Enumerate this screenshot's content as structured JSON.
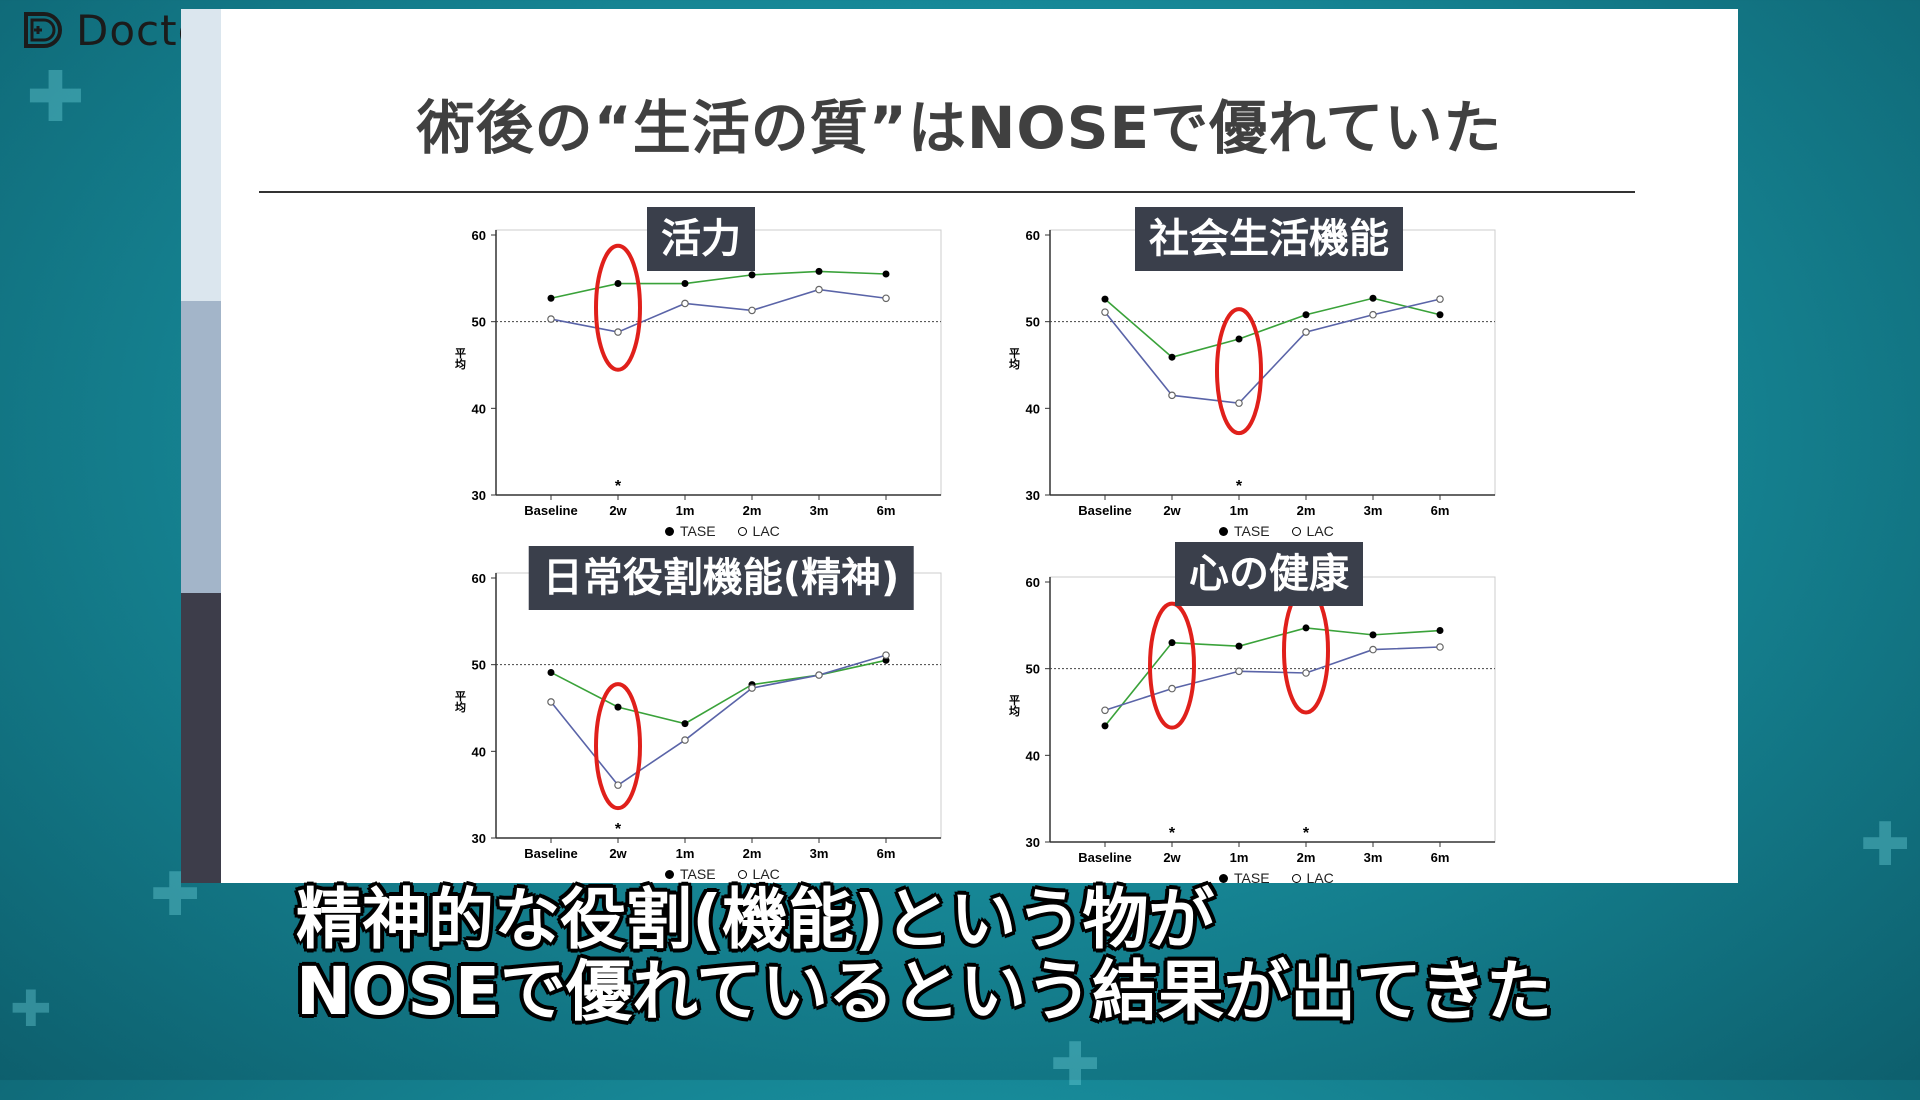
{
  "brand": {
    "name": "Doctorbook"
  },
  "slide": {
    "title": "術後の“生活の質”はNOSEで優れていた"
  },
  "legend": {
    "tase": "TASE",
    "lac": "LAC"
  },
  "colors": {
    "tase": "#3aa23a",
    "lac": "#5a64a8",
    "highlight": "#e0201b",
    "label_bg": "#3a3f4b"
  },
  "chart_data": [
    {
      "type": "line",
      "title": "活力",
      "ylabel": "平均",
      "categories": [
        "Baseline",
        "2w",
        "1m",
        "2m",
        "3m",
        "6m"
      ],
      "ylim": [
        30,
        60
      ],
      "yticks": [
        "30",
        "40",
        "50",
        "60"
      ],
      "reference_line": 50,
      "significant": [
        "2w"
      ],
      "highlighted": [
        "2w"
      ],
      "series": [
        {
          "name": "TASE",
          "values": [
            52.7,
            54.4,
            54.4,
            55.4,
            55.8,
            55.5
          ]
        },
        {
          "name": "LAC",
          "values": [
            50.3,
            48.8,
            52.1,
            51.3,
            53.7,
            52.7
          ]
        }
      ]
    },
    {
      "type": "line",
      "title": "社会生活機能",
      "ylabel": "平均",
      "categories": [
        "Baseline",
        "2w",
        "1m",
        "2m",
        "3m",
        "6m"
      ],
      "ylim": [
        30,
        60
      ],
      "yticks": [
        "30",
        "40",
        "50",
        "60"
      ],
      "reference_line": 50,
      "significant": [
        "1m"
      ],
      "highlighted": [
        "1m"
      ],
      "series": [
        {
          "name": "TASE",
          "values": [
            52.6,
            45.9,
            48.0,
            50.8,
            52.7,
            50.8
          ]
        },
        {
          "name": "LAC",
          "values": [
            51.1,
            41.5,
            40.6,
            48.8,
            50.8,
            52.6
          ]
        }
      ]
    },
    {
      "type": "line",
      "title": "日常役割機能(精神)",
      "ylabel": "平均",
      "categories": [
        "Baseline",
        "2w",
        "1m",
        "2m",
        "3m",
        "6m"
      ],
      "ylim": [
        30,
        60
      ],
      "yticks": [
        "30",
        "40",
        "50",
        "60"
      ],
      "reference_line": 50,
      "significant": [
        "2w"
      ],
      "highlighted": [
        "2w"
      ],
      "series": [
        {
          "name": "TASE",
          "values": [
            49.1,
            45.1,
            43.2,
            47.7,
            48.8,
            50.5
          ]
        },
        {
          "name": "LAC",
          "values": [
            45.7,
            36.1,
            41.3,
            47.3,
            48.8,
            51.1
          ]
        }
      ]
    },
    {
      "type": "line",
      "title": "心の健康",
      "ylabel": "平均",
      "categories": [
        "Baseline",
        "2w",
        "1m",
        "2m",
        "3m",
        "6m"
      ],
      "ylim": [
        30,
        60
      ],
      "yticks": [
        "30",
        "40",
        "50",
        "60"
      ],
      "reference_line": 50,
      "significant": [
        "2w",
        "2m"
      ],
      "highlighted": [
        "2w",
        "2m"
      ],
      "series": [
        {
          "name": "TASE",
          "values": [
            43.4,
            53.0,
            52.6,
            54.7,
            53.9,
            54.4
          ]
        },
        {
          "name": "LAC",
          "values": [
            45.2,
            47.7,
            49.7,
            49.5,
            52.2,
            52.5
          ]
        }
      ]
    }
  ],
  "caption": {
    "line1": "精神的な役割(機能)という物が",
    "line2": "NOSEで優れているという結果が出てきた"
  }
}
